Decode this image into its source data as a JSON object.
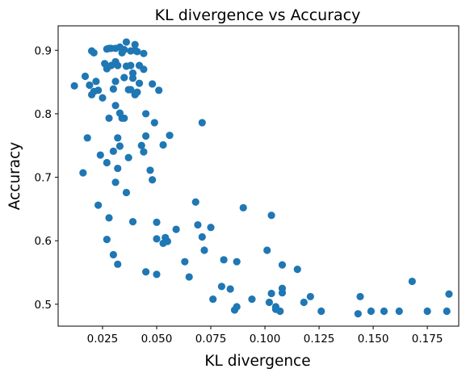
{
  "chart_data": {
    "type": "scatter",
    "title": "KL divergence vs Accuracy",
    "xlabel": "KL divergence",
    "ylabel": "Accuracy",
    "xlim": [
      0.0045,
      0.1895
    ],
    "ylim": [
      0.4655,
      0.9385
    ],
    "xticks": [
      0.025,
      0.05,
      0.075,
      0.1,
      0.125,
      0.15,
      0.175
    ],
    "xtick_labels": [
      "0.025",
      "0.050",
      "0.075",
      "0.100",
      "0.125",
      "0.150",
      "0.175"
    ],
    "yticks": [
      0.5,
      0.6,
      0.7,
      0.8,
      0.9
    ],
    "ytick_labels": [
      "0.5",
      "0.6",
      "0.7",
      "0.8",
      "0.9"
    ],
    "grid": false,
    "marker_color": "#1f77b4",
    "series": [
      {
        "points": [
          [
            0.012,
            0.844
          ],
          [
            0.016,
            0.707
          ],
          [
            0.017,
            0.859
          ],
          [
            0.018,
            0.762
          ],
          [
            0.019,
            0.845
          ],
          [
            0.02,
            0.899
          ],
          [
            0.02,
            0.83
          ],
          [
            0.021,
            0.896
          ],
          [
            0.021,
            0.835
          ],
          [
            0.022,
            0.851
          ],
          [
            0.023,
            0.837
          ],
          [
            0.023,
            0.656
          ],
          [
            0.024,
            0.735
          ],
          [
            0.025,
            0.825
          ],
          [
            0.026,
            0.879
          ],
          [
            0.027,
            0.871
          ],
          [
            0.027,
            0.902
          ],
          [
            0.027,
            0.602
          ],
          [
            0.027,
            0.723
          ],
          [
            0.028,
            0.903
          ],
          [
            0.028,
            0.793
          ],
          [
            0.028,
            0.636
          ],
          [
            0.029,
            0.903
          ],
          [
            0.029,
            0.876
          ],
          [
            0.03,
            0.839
          ],
          [
            0.03,
            0.741
          ],
          [
            0.03,
            0.578
          ],
          [
            0.031,
            0.903
          ],
          [
            0.031,
            0.813
          ],
          [
            0.031,
            0.882
          ],
          [
            0.031,
            0.851
          ],
          [
            0.031,
            0.692
          ],
          [
            0.032,
            0.876
          ],
          [
            0.032,
            0.762
          ],
          [
            0.032,
            0.714
          ],
          [
            0.032,
            0.563
          ],
          [
            0.033,
            0.905
          ],
          [
            0.033,
            0.801
          ],
          [
            0.033,
            0.749
          ],
          [
            0.034,
            0.896
          ],
          [
            0.034,
            0.793
          ],
          [
            0.035,
            0.857
          ],
          [
            0.035,
            0.901
          ],
          [
            0.035,
            0.793
          ],
          [
            0.036,
            0.913
          ],
          [
            0.036,
            0.875
          ],
          [
            0.036,
            0.676
          ],
          [
            0.037,
            0.838
          ],
          [
            0.037,
            0.731
          ],
          [
            0.038,
            0.899
          ],
          [
            0.038,
            0.838
          ],
          [
            0.038,
            0.876
          ],
          [
            0.039,
            0.856
          ],
          [
            0.039,
            0.864
          ],
          [
            0.039,
            0.63
          ],
          [
            0.04,
            0.909
          ],
          [
            0.04,
            0.9
          ],
          [
            0.04,
            0.83
          ],
          [
            0.041,
            0.898
          ],
          [
            0.041,
            0.834
          ],
          [
            0.042,
            0.876
          ],
          [
            0.042,
            0.848
          ],
          [
            0.043,
            0.75
          ],
          [
            0.044,
            0.895
          ],
          [
            0.044,
            0.87
          ],
          [
            0.044,
            0.74
          ],
          [
            0.045,
            0.8
          ],
          [
            0.045,
            0.765
          ],
          [
            0.045,
            0.551
          ],
          [
            0.047,
            0.711
          ],
          [
            0.048,
            0.847
          ],
          [
            0.048,
            0.696
          ],
          [
            0.049,
            0.786
          ],
          [
            0.05,
            0.603
          ],
          [
            0.05,
            0.547
          ],
          [
            0.05,
            0.629
          ],
          [
            0.051,
            0.837
          ],
          [
            0.053,
            0.751
          ],
          [
            0.053,
            0.596
          ],
          [
            0.054,
            0.605
          ],
          [
            0.055,
            0.599
          ],
          [
            0.056,
            0.766
          ],
          [
            0.059,
            0.618
          ],
          [
            0.063,
            0.567
          ],
          [
            0.065,
            0.543
          ],
          [
            0.068,
            0.661
          ],
          [
            0.069,
            0.625
          ],
          [
            0.071,
            0.786
          ],
          [
            0.071,
            0.606
          ],
          [
            0.072,
            0.585
          ],
          [
            0.075,
            0.621
          ],
          [
            0.076,
            0.508
          ],
          [
            0.08,
            0.528
          ],
          [
            0.081,
            0.57
          ],
          [
            0.084,
            0.524
          ],
          [
            0.086,
            0.491
          ],
          [
            0.087,
            0.567
          ],
          [
            0.087,
            0.496
          ],
          [
            0.09,
            0.652
          ],
          [
            0.094,
            0.508
          ],
          [
            0.101,
            0.585
          ],
          [
            0.102,
            0.503
          ],
          [
            0.103,
            0.517
          ],
          [
            0.103,
            0.64
          ],
          [
            0.105,
            0.492
          ],
          [
            0.105,
            0.496
          ],
          [
            0.107,
            0.489
          ],
          [
            0.108,
            0.562
          ],
          [
            0.108,
            0.525
          ],
          [
            0.108,
            0.518
          ],
          [
            0.115,
            0.555
          ],
          [
            0.118,
            0.503
          ],
          [
            0.121,
            0.512
          ],
          [
            0.126,
            0.489
          ],
          [
            0.143,
            0.485
          ],
          [
            0.144,
            0.512
          ],
          [
            0.149,
            0.489
          ],
          [
            0.155,
            0.489
          ],
          [
            0.162,
            0.489
          ],
          [
            0.168,
            0.536
          ],
          [
            0.175,
            0.489
          ],
          [
            0.184,
            0.489
          ],
          [
            0.185,
            0.516
          ]
        ]
      }
    ]
  }
}
